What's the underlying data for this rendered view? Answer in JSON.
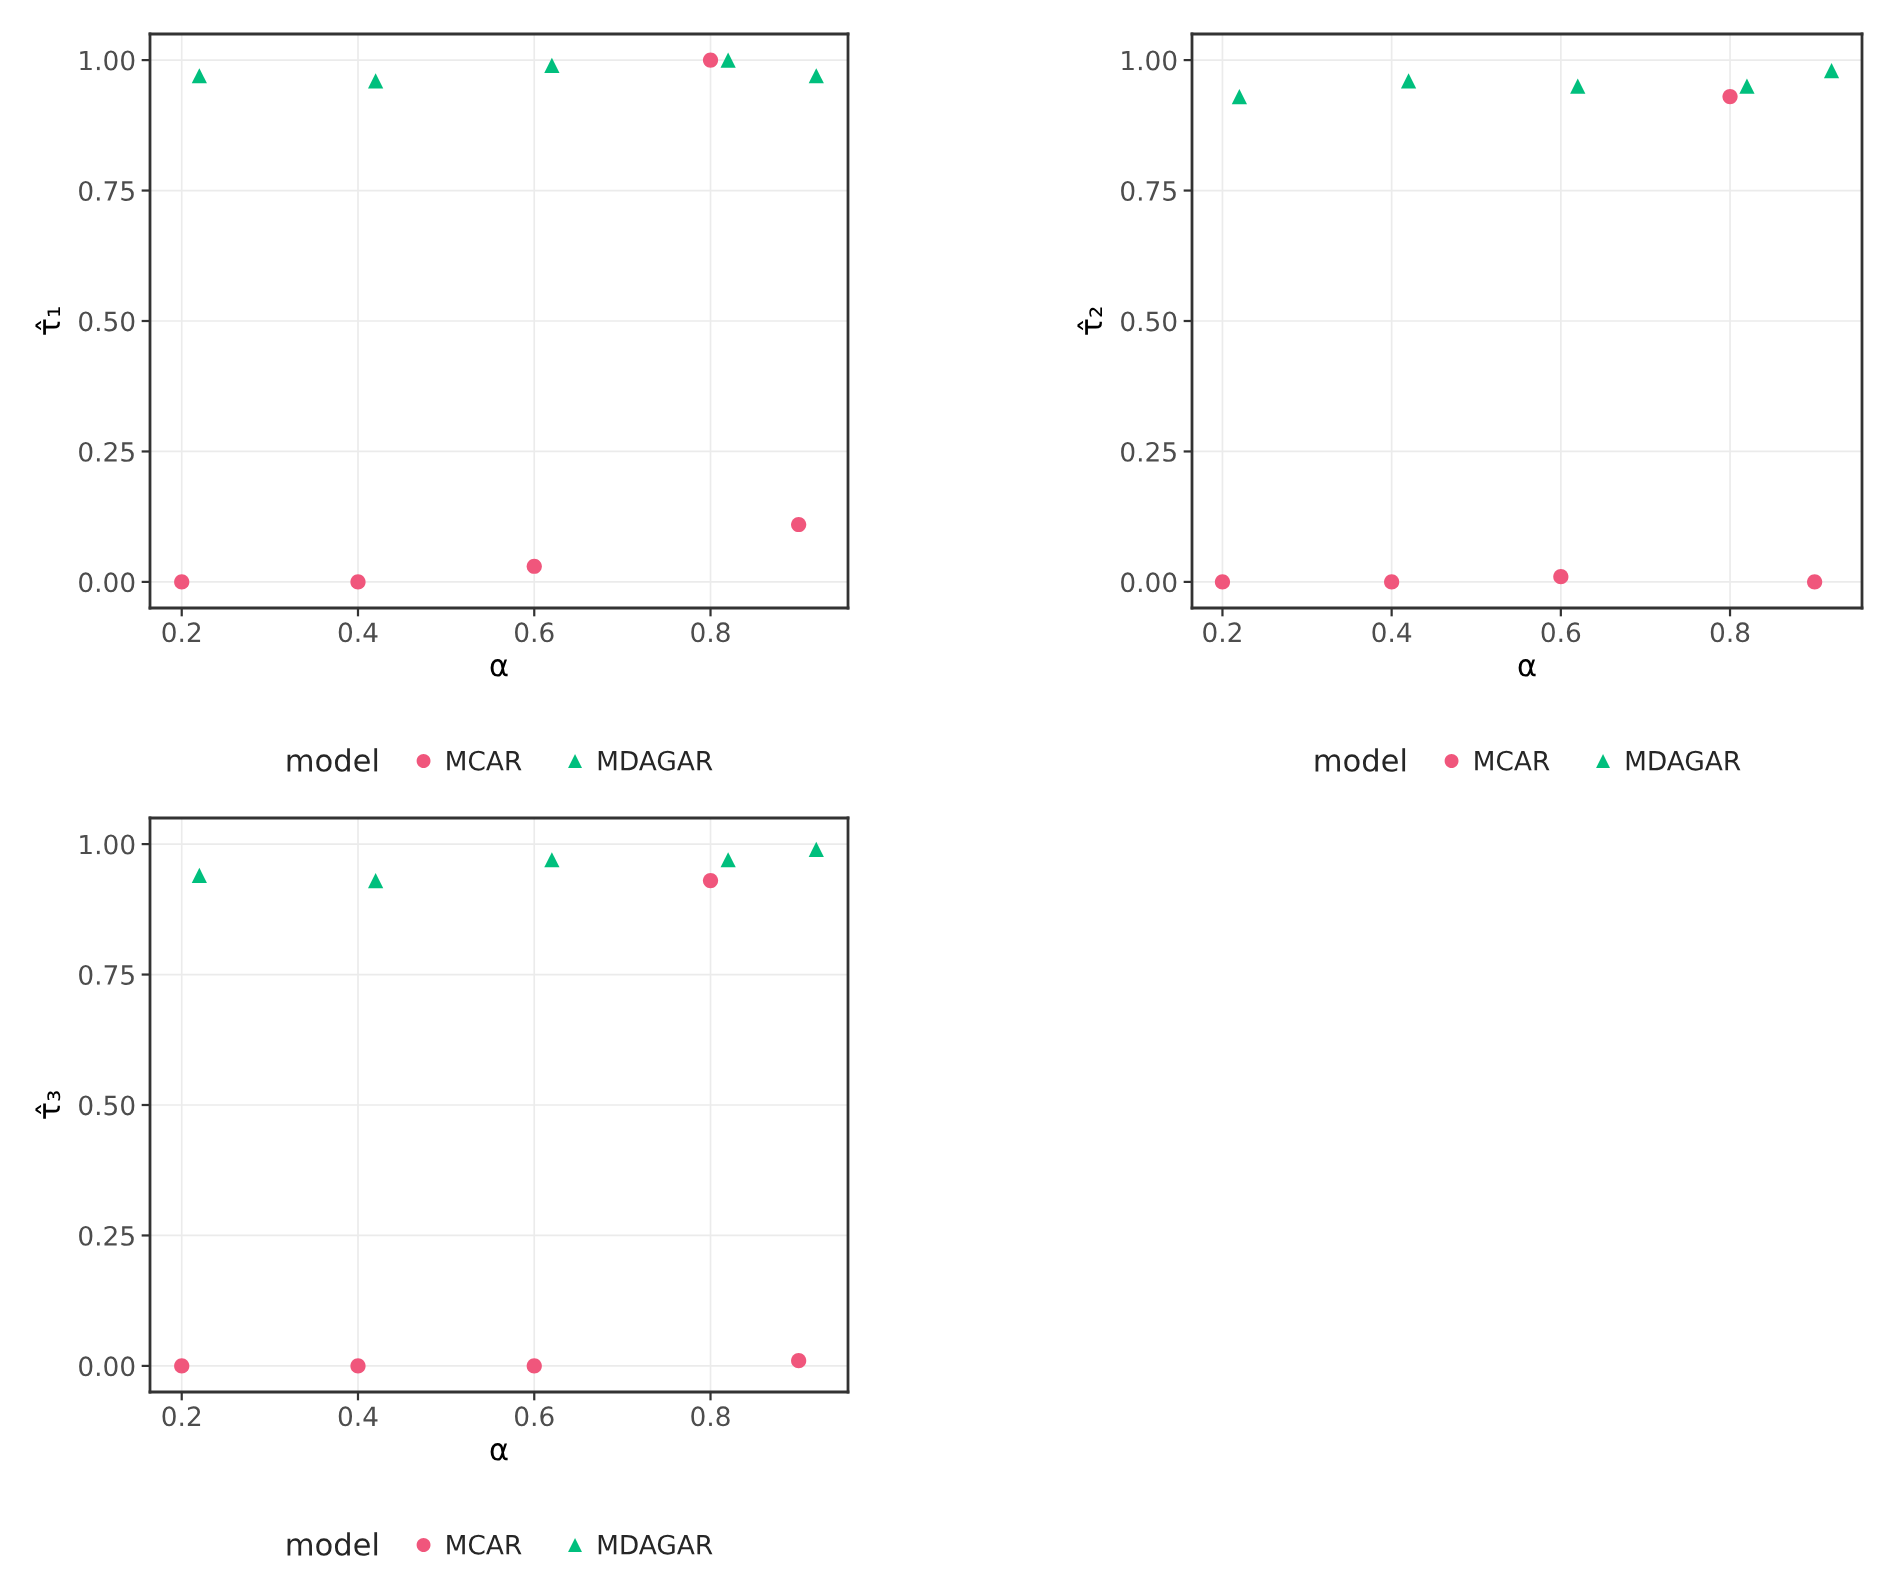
{
  "chart_data": [
    {
      "type": "scatter",
      "xlabel": "α",
      "ylabel": "τ̂₁",
      "legend_title": "model",
      "legend": "bottom",
      "grid": true,
      "xlim": [
        0.164,
        0.956
      ],
      "ylim": [
        -0.05,
        1.05
      ],
      "xticks": [
        0.2,
        0.4,
        0.6,
        0.8
      ],
      "yticks": [
        {
          "value": 0,
          "label": "0.00"
        },
        {
          "value": 0.25,
          "label": "0.25"
        },
        {
          "value": 0.5,
          "label": "0.50"
        },
        {
          "value": 0.75,
          "label": "0.75"
        },
        {
          "value": 1,
          "label": "1.00"
        }
      ],
      "series": [
        {
          "name": "MCAR",
          "color": "#f0567c",
          "marker": "circle",
          "x": [
            0.2,
            0.4,
            0.6,
            0.8,
            0.9
          ],
          "values": [
            0,
            0,
            0.03,
            1.0,
            0.11
          ]
        },
        {
          "name": "MDAGAR",
          "color": "#00bf7d",
          "marker": "triangle",
          "x": [
            0.22,
            0.42,
            0.62,
            0.82,
            0.92
          ],
          "values": [
            0.97,
            0.96,
            0.99,
            1.0,
            0.97
          ]
        }
      ]
    },
    {
      "type": "scatter",
      "xlabel": "α",
      "ylabel": "τ̂₂",
      "legend_title": "model",
      "legend": "bottom",
      "grid": true,
      "xlim": [
        0.164,
        0.956
      ],
      "ylim": [
        -0.05,
        1.05
      ],
      "xticks": [
        0.2,
        0.4,
        0.6,
        0.8
      ],
      "yticks": [
        {
          "value": 0,
          "label": "0.00"
        },
        {
          "value": 0.25,
          "label": "0.25"
        },
        {
          "value": 0.5,
          "label": "0.50"
        },
        {
          "value": 0.75,
          "label": "0.75"
        },
        {
          "value": 1,
          "label": "1.00"
        }
      ],
      "series": [
        {
          "name": "MCAR",
          "color": "#f0567c",
          "marker": "circle",
          "x": [
            0.2,
            0.4,
            0.6,
            0.8,
            0.9
          ],
          "values": [
            0,
            0,
            0.01,
            0.93,
            0
          ]
        },
        {
          "name": "MDAGAR",
          "color": "#00bf7d",
          "marker": "triangle",
          "x": [
            0.22,
            0.42,
            0.62,
            0.82,
            0.92
          ],
          "values": [
            0.93,
            0.96,
            0.95,
            0.95,
            0.98
          ]
        }
      ]
    },
    {
      "type": "scatter",
      "xlabel": "α",
      "ylabel": "τ̂₃",
      "legend_title": "model",
      "legend": "bottom",
      "grid": true,
      "xlim": [
        0.164,
        0.956
      ],
      "ylim": [
        -0.05,
        1.05
      ],
      "xticks": [
        0.2,
        0.4,
        0.6,
        0.8
      ],
      "yticks": [
        {
          "value": 0,
          "label": "0.00"
        },
        {
          "value": 0.25,
          "label": "0.25"
        },
        {
          "value": 0.5,
          "label": "0.50"
        },
        {
          "value": 0.75,
          "label": "0.75"
        },
        {
          "value": 1,
          "label": "1.00"
        }
      ],
      "series": [
        {
          "name": "MCAR",
          "color": "#f0567c",
          "marker": "circle",
          "x": [
            0.2,
            0.4,
            0.6,
            0.8,
            0.9
          ],
          "values": [
            0,
            0,
            0,
            0.93,
            0.01
          ]
        },
        {
          "name": "MDAGAR",
          "color": "#00bf7d",
          "marker": "triangle",
          "x": [
            0.22,
            0.42,
            0.62,
            0.82,
            0.92
          ],
          "values": [
            0.94,
            0.93,
            0.97,
            0.97,
            0.99
          ]
        }
      ]
    }
  ]
}
